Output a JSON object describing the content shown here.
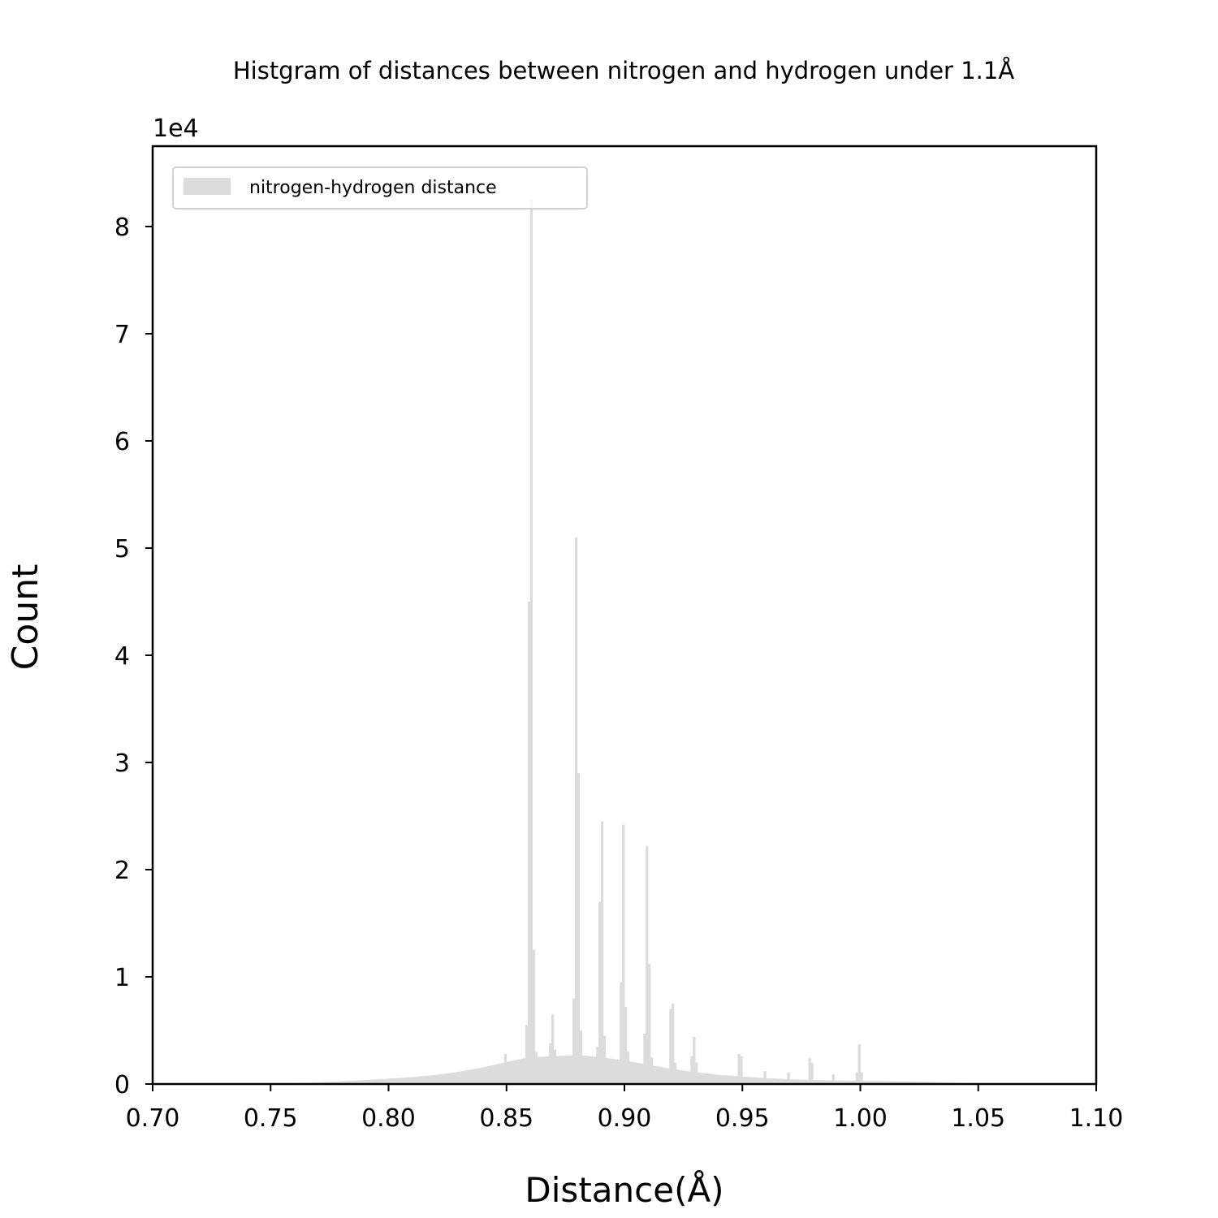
{
  "chart_data": {
    "type": "bar",
    "title": "Histgram of distances between nitrogen and hydrogen under 1.1Å",
    "xlabel": "Distance(Å)",
    "ylabel": "Count",
    "y_offset_label": "1e4",
    "xlim": [
      0.7,
      1.1
    ],
    "ylim": [
      0,
      87500
    ],
    "x_ticks": [
      0.7,
      0.75,
      0.8,
      0.85,
      0.9,
      0.95,
      1.0,
      1.05,
      1.1
    ],
    "x_tick_labels": [
      "0.70",
      "0.75",
      "0.80",
      "0.85",
      "0.90",
      "0.95",
      "1.00",
      "1.05",
      "1.10"
    ],
    "y_ticks": [
      0,
      10000,
      20000,
      30000,
      40000,
      50000,
      60000,
      70000,
      80000
    ],
    "y_tick_labels": [
      "0",
      "1",
      "2",
      "3",
      "4",
      "5",
      "6",
      "7",
      "8"
    ],
    "grid": false,
    "legend_position": "top-left",
    "bar_color": "#dcdcdc",
    "series": [
      {
        "name": "nitrogen-hydrogen distance",
        "bin_width": 0.001,
        "baseline_points": [
          [
            0.7,
            0
          ],
          [
            0.74,
            30
          ],
          [
            0.76,
            80
          ],
          [
            0.77,
            150
          ],
          [
            0.78,
            250
          ],
          [
            0.79,
            380
          ],
          [
            0.8,
            500
          ],
          [
            0.81,
            650
          ],
          [
            0.82,
            850
          ],
          [
            0.83,
            1150
          ],
          [
            0.84,
            1550
          ],
          [
            0.85,
            2050
          ],
          [
            0.855,
            2300
          ],
          [
            0.86,
            2500
          ],
          [
            0.87,
            2600
          ],
          [
            0.88,
            2700
          ],
          [
            0.89,
            2500
          ],
          [
            0.9,
            2200
          ],
          [
            0.91,
            1800
          ],
          [
            0.92,
            1400
          ],
          [
            0.93,
            1100
          ],
          [
            0.94,
            850
          ],
          [
            0.95,
            700
          ],
          [
            0.96,
            550
          ],
          [
            0.97,
            450
          ],
          [
            0.98,
            380
          ],
          [
            0.99,
            330
          ],
          [
            1.0,
            300
          ],
          [
            1.01,
            280
          ],
          [
            1.02,
            250
          ],
          [
            1.03,
            200
          ],
          [
            1.04,
            120
          ],
          [
            1.05,
            60
          ],
          [
            1.06,
            30
          ],
          [
            1.08,
            10
          ],
          [
            1.1,
            0
          ]
        ],
        "peaks": [
          [
            0.8495,
            2800
          ],
          [
            0.8585,
            5500
          ],
          [
            0.8595,
            45000
          ],
          [
            0.8605,
            82500
          ],
          [
            0.8615,
            12500
          ],
          [
            0.8625,
            3000
          ],
          [
            0.8685,
            3800
          ],
          [
            0.8695,
            6500
          ],
          [
            0.8705,
            3200
          ],
          [
            0.8785,
            8000
          ],
          [
            0.8795,
            51000
          ],
          [
            0.8805,
            29000
          ],
          [
            0.8815,
            5000
          ],
          [
            0.8885,
            3500
          ],
          [
            0.8895,
            17000
          ],
          [
            0.8905,
            24500
          ],
          [
            0.8915,
            4500
          ],
          [
            0.8985,
            9500
          ],
          [
            0.8995,
            24200
          ],
          [
            0.9005,
            7200
          ],
          [
            0.9015,
            3000
          ],
          [
            0.9085,
            4700
          ],
          [
            0.9095,
            22200
          ],
          [
            0.9105,
            11200
          ],
          [
            0.9115,
            2500
          ],
          [
            0.9195,
            7000
          ],
          [
            0.9205,
            7500
          ],
          [
            0.9215,
            2000
          ],
          [
            0.9285,
            2600
          ],
          [
            0.9295,
            4400
          ],
          [
            0.9305,
            2000
          ],
          [
            0.9485,
            2800
          ],
          [
            0.9495,
            2600
          ],
          [
            0.9595,
            1200
          ],
          [
            0.9695,
            1100
          ],
          [
            0.9785,
            2400
          ],
          [
            0.9795,
            2000
          ],
          [
            0.9885,
            900
          ],
          [
            0.9985,
            1100
          ],
          [
            0.9995,
            3700
          ],
          [
            1.0005,
            1100
          ]
        ]
      }
    ]
  }
}
